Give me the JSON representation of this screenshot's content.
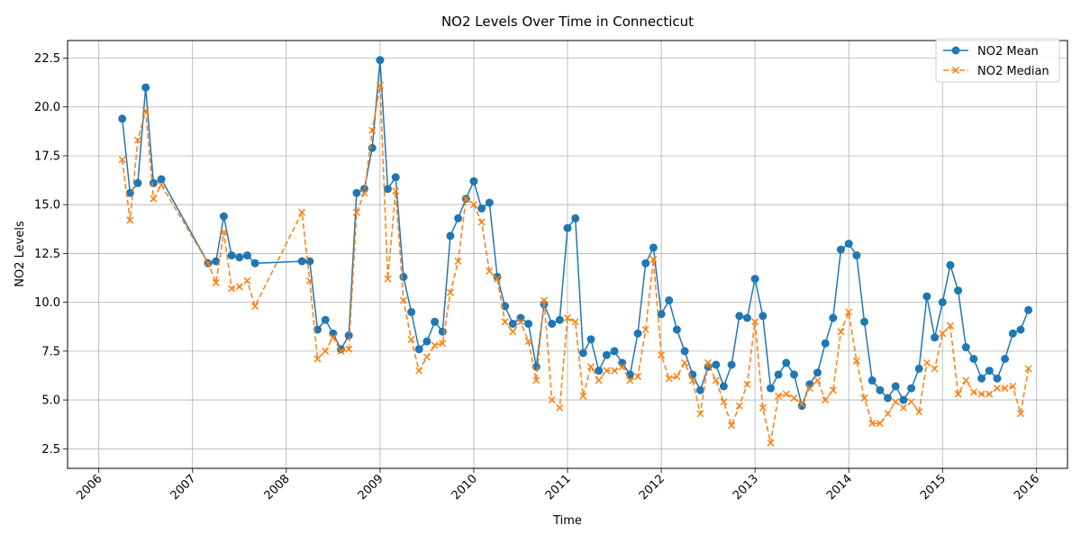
{
  "chart_data": {
    "type": "line",
    "title": "NO2 Levels Over Time in Connecticut",
    "xlabel": "Time",
    "ylabel": "NO2 Levels",
    "xlim": [
      "2005-09-01",
      "2016-05-01"
    ],
    "ylim": [
      1.5,
      23.4
    ],
    "grid": true,
    "legend": "top-right",
    "x_ticks": [
      "2006",
      "2007",
      "2008",
      "2009",
      "2010",
      "2011",
      "2012",
      "2013",
      "2014",
      "2015",
      "2016"
    ],
    "y_ticks": [
      "2.5",
      "5.0",
      "7.5",
      "10.0",
      "12.5",
      "15.0",
      "17.5",
      "20.0",
      "22.5"
    ],
    "x": [
      "2006-04",
      "2006-05",
      "2006-06",
      "2006-07",
      "2006-08",
      "2006-09",
      "2007-03",
      "2007-04",
      "2007-05",
      "2007-06",
      "2007-07",
      "2007-08",
      "2007-09",
      "2008-03",
      "2008-04",
      "2008-05",
      "2008-06",
      "2008-07",
      "2008-08",
      "2008-09",
      "2008-10",
      "2008-11",
      "2008-12",
      "2009-01",
      "2009-02",
      "2009-03",
      "2009-04",
      "2009-05",
      "2009-06",
      "2009-07",
      "2009-08",
      "2009-09",
      "2009-10",
      "2009-11",
      "2009-12",
      "2010-01",
      "2010-02",
      "2010-03",
      "2010-04",
      "2010-05",
      "2010-06",
      "2010-07",
      "2010-08",
      "2010-09",
      "2010-10",
      "2010-11",
      "2010-12",
      "2011-01",
      "2011-02",
      "2011-03",
      "2011-04",
      "2011-05",
      "2011-06",
      "2011-07",
      "2011-08",
      "2011-09",
      "2011-10",
      "2011-11",
      "2011-12",
      "2012-01",
      "2012-02",
      "2012-03",
      "2012-04",
      "2012-05",
      "2012-06",
      "2012-07",
      "2012-08",
      "2012-09",
      "2012-10",
      "2012-11",
      "2012-12",
      "2013-01",
      "2013-02",
      "2013-03",
      "2013-04",
      "2013-05",
      "2013-06",
      "2013-07",
      "2013-08",
      "2013-09",
      "2013-10",
      "2013-11",
      "2013-12",
      "2014-01",
      "2014-02",
      "2014-03",
      "2014-04",
      "2014-05",
      "2014-06",
      "2014-07",
      "2014-08",
      "2014-09",
      "2014-10",
      "2014-11",
      "2014-12",
      "2015-01",
      "2015-02",
      "2015-03",
      "2015-04",
      "2015-05",
      "2015-06",
      "2015-07",
      "2015-08",
      "2015-09",
      "2015-10",
      "2015-11",
      "2015-12"
    ],
    "series": [
      {
        "name": "NO2 Mean",
        "color": "#1f77b4",
        "marker": "circle",
        "line_style": "solid",
        "values": [
          19.4,
          15.6,
          16.1,
          21.0,
          16.1,
          16.3,
          12.0,
          12.1,
          14.4,
          12.4,
          12.3,
          12.4,
          12.0,
          12.1,
          12.1,
          8.6,
          9.1,
          8.4,
          7.6,
          8.3,
          15.6,
          15.8,
          17.9,
          22.4,
          15.8,
          16.4,
          11.3,
          9.5,
          7.6,
          8.0,
          9.0,
          8.5,
          13.4,
          14.3,
          15.3,
          16.2,
          14.8,
          15.1,
          11.3,
          9.8,
          8.9,
          9.2,
          8.9,
          6.7,
          9.9,
          8.9,
          9.1,
          13.8,
          14.3,
          7.4,
          8.1,
          6.5,
          7.3,
          7.5,
          6.9,
          6.3,
          8.4,
          12.0,
          12.8,
          9.4,
          10.1,
          8.6,
          7.5,
          6.3,
          5.5,
          6.7,
          6.8,
          5.7,
          6.8,
          9.3,
          9.2,
          11.2,
          9.3,
          5.6,
          6.3,
          6.9,
          6.3,
          4.7,
          5.8,
          6.4,
          7.9,
          9.2,
          12.7,
          13.0,
          12.4,
          9.0,
          6.0,
          5.5,
          5.1,
          5.7,
          5.0,
          5.6,
          6.6,
          10.3,
          8.2,
          10.0,
          11.9,
          10.6,
          7.7,
          7.1,
          6.1,
          6.5,
          6.1,
          7.1,
          8.4,
          8.6,
          9.6
        ]
      },
      {
        "name": "NO2 Median",
        "color": "#ff7f0e",
        "marker": "x",
        "line_style": "dashed",
        "values": [
          17.3,
          14.2,
          18.3,
          19.8,
          15.3,
          16.0,
          12.0,
          11.0,
          13.6,
          10.7,
          10.8,
          11.1,
          9.8,
          14.6,
          11.1,
          7.1,
          7.5,
          8.2,
          7.5,
          7.6,
          14.6,
          15.6,
          18.8,
          21.1,
          11.2,
          15.7,
          10.1,
          8.1,
          6.5,
          7.2,
          7.8,
          7.9,
          10.5,
          12.1,
          15.3,
          15.0,
          14.1,
          11.6,
          11.2,
          9.0,
          8.5,
          9.0,
          8.0,
          6.0,
          10.1,
          5.0,
          4.6,
          9.2,
          9.0,
          5.2,
          6.7,
          6.0,
          6.5,
          6.5,
          6.7,
          6.0,
          6.2,
          8.6,
          12.2,
          7.3,
          6.1,
          6.2,
          6.9,
          6.0,
          4.3,
          6.9,
          6.0,
          4.9,
          3.7,
          4.7,
          5.8,
          9.0,
          4.6,
          2.8,
          5.2,
          5.3,
          5.1,
          4.8,
          5.6,
          6.0,
          5.0,
          5.5,
          8.5,
          9.5,
          7.0,
          5.1,
          3.8,
          3.8,
          4.3,
          4.9,
          4.6,
          4.9,
          4.4,
          6.9,
          6.6,
          8.4,
          8.8,
          5.3,
          6.0,
          5.4,
          5.3,
          5.3,
          5.6,
          5.6,
          5.7,
          4.3,
          6.6
        ]
      }
    ]
  }
}
